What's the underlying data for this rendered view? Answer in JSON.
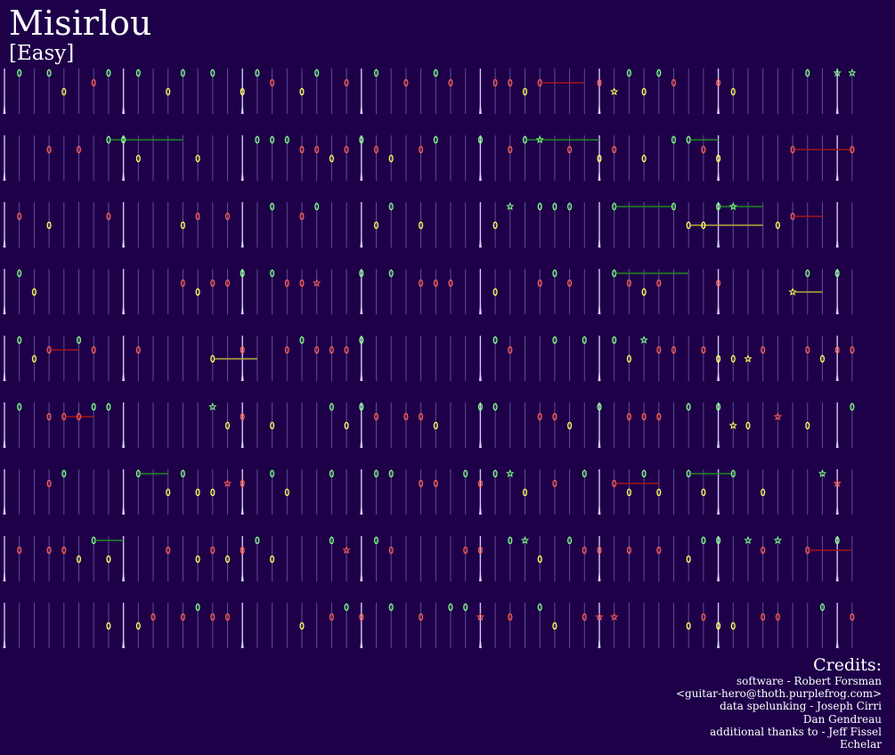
{
  "song": {
    "title": "Misirlou",
    "difficulty": "[Easy]"
  },
  "colors": {
    "background": "#1e0049",
    "measure_line": "#6e5fa8",
    "beat_line": "#d9d2ff",
    "green": "#7cff7c",
    "red": "#ff5a4a",
    "yellow": "#ffff55",
    "sustain_green": "#1f8a1f",
    "sustain_red": "#a31414",
    "sustain_yellow": "#b8a93a"
  },
  "chart_data": {
    "type": "note-chart",
    "instrument_lanes": [
      "green",
      "red",
      "yellow"
    ],
    "rows": 9,
    "note_pattern_note": "approximate reproduction of visible note layout"
  },
  "credits": {
    "heading": "Credits:",
    "lines": [
      "software - Robert Forsman",
      "<guitar-hero@thoth.purplefrog.com>",
      "data spelunking - Joseph Cirri",
      "Dan Gendreau",
      "additional thanks to - Jeff Fissel",
      "Echelar"
    ]
  }
}
